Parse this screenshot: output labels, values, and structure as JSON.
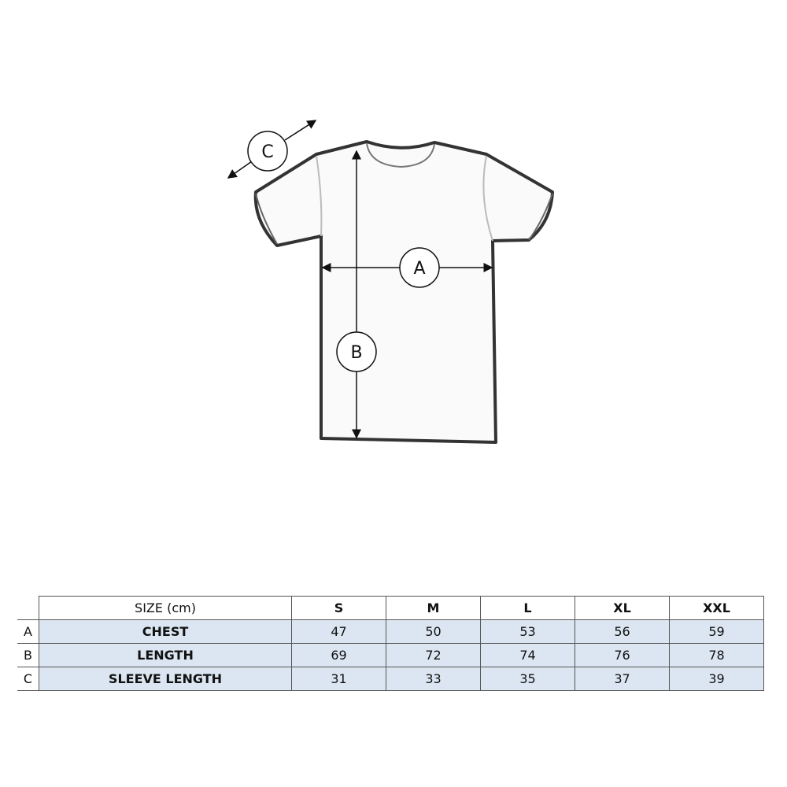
{
  "diagram": {
    "labels": {
      "a": "A",
      "b": "B",
      "c": "C"
    }
  },
  "table": {
    "header": {
      "label": "SIZE (cm)",
      "sizes": [
        "S",
        "M",
        "L",
        "XL",
        "XXL"
      ]
    },
    "rows": [
      {
        "key": "A",
        "name": "CHEST",
        "values": [
          "47",
          "50",
          "53",
          "56",
          "59"
        ]
      },
      {
        "key": "B",
        "name": "LENGTH",
        "values": [
          "69",
          "72",
          "74",
          "76",
          "78"
        ]
      },
      {
        "key": "C",
        "name": "SLEEVE LENGTH",
        "values": [
          "31",
          "33",
          "35",
          "37",
          "39"
        ]
      }
    ]
  },
  "colors": {
    "row_fill": "#dce6f2",
    "border": "#555555"
  }
}
